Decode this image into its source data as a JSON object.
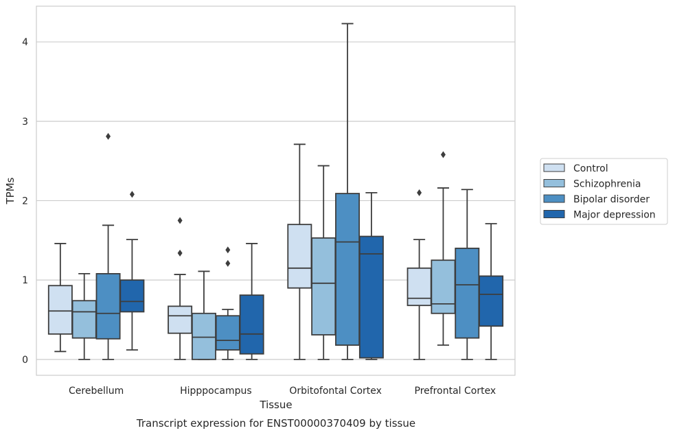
{
  "caption": "Transcript expression for ENST00000370409 by tissue",
  "chart_data": {
    "type": "box",
    "title": "",
    "xlabel": "Tissue",
    "ylabel": "TPMs",
    "categories": [
      "Cerebellum",
      "Hipppocampus",
      "Orbitofontal Cortex",
      "Prefrontal Cortex"
    ],
    "ylim": [
      -0.2,
      4.45
    ],
    "yticks": [
      0,
      1,
      2,
      3,
      4
    ],
    "grid": "horizontal",
    "legend_position": "right",
    "colors": {
      "Control": "#cfe0f1",
      "Schizophrenia": "#94bfdc",
      "Bipolar disorder": "#4d8fc3",
      "Major depression": "#2166ac"
    },
    "series": [
      {
        "name": "Control",
        "boxes": [
          {
            "min": 0.1,
            "q1": 0.32,
            "median": 0.61,
            "q3": 0.93,
            "max": 1.46,
            "outliers": []
          },
          {
            "min": 0.0,
            "q1": 0.33,
            "median": 0.55,
            "q3": 0.67,
            "max": 1.07,
            "outliers": [
              1.75,
              1.34
            ]
          },
          {
            "min": 0.0,
            "q1": 0.9,
            "median": 1.15,
            "q3": 1.7,
            "max": 2.71,
            "outliers": []
          },
          {
            "min": 0.0,
            "q1": 0.68,
            "median": 0.77,
            "q3": 1.15,
            "max": 1.51,
            "outliers": [
              2.1
            ]
          }
        ]
      },
      {
        "name": "Schizophrenia",
        "boxes": [
          {
            "min": 0.0,
            "q1": 0.27,
            "median": 0.6,
            "q3": 0.74,
            "max": 1.08,
            "outliers": []
          },
          {
            "min": 0.0,
            "q1": 0.0,
            "median": 0.28,
            "q3": 0.58,
            "max": 1.11,
            "outliers": []
          },
          {
            "min": 0.0,
            "q1": 0.31,
            "median": 0.96,
            "q3": 1.53,
            "max": 2.44,
            "outliers": []
          },
          {
            "min": 0.18,
            "q1": 0.58,
            "median": 0.7,
            "q3": 1.25,
            "max": 2.16,
            "outliers": [
              2.58
            ]
          }
        ]
      },
      {
        "name": "Bipolar disorder",
        "boxes": [
          {
            "min": 0.0,
            "q1": 0.26,
            "median": 0.58,
            "q3": 1.08,
            "max": 1.69,
            "outliers": [
              2.81
            ]
          },
          {
            "min": 0.0,
            "q1": 0.12,
            "median": 0.24,
            "q3": 0.55,
            "max": 0.63,
            "outliers": [
              1.38,
              1.21
            ]
          },
          {
            "min": 0.0,
            "q1": 0.18,
            "median": 1.48,
            "q3": 2.09,
            "max": 4.23,
            "outliers": []
          },
          {
            "min": 0.0,
            "q1": 0.27,
            "median": 0.94,
            "q3": 1.4,
            "max": 2.14,
            "outliers": []
          }
        ]
      },
      {
        "name": "Major depression",
        "boxes": [
          {
            "min": 0.12,
            "q1": 0.6,
            "median": 0.73,
            "q3": 1.0,
            "max": 1.51,
            "outliers": [
              2.08
            ]
          },
          {
            "min": 0.0,
            "q1": 0.07,
            "median": 0.32,
            "q3": 0.81,
            "max": 1.46,
            "outliers": []
          },
          {
            "min": 0.0,
            "q1": 0.02,
            "median": 1.33,
            "q3": 1.55,
            "max": 2.1,
            "outliers": []
          },
          {
            "min": 0.0,
            "q1": 0.42,
            "median": 0.82,
            "q3": 1.05,
            "max": 1.71,
            "outliers": []
          }
        ]
      }
    ]
  }
}
